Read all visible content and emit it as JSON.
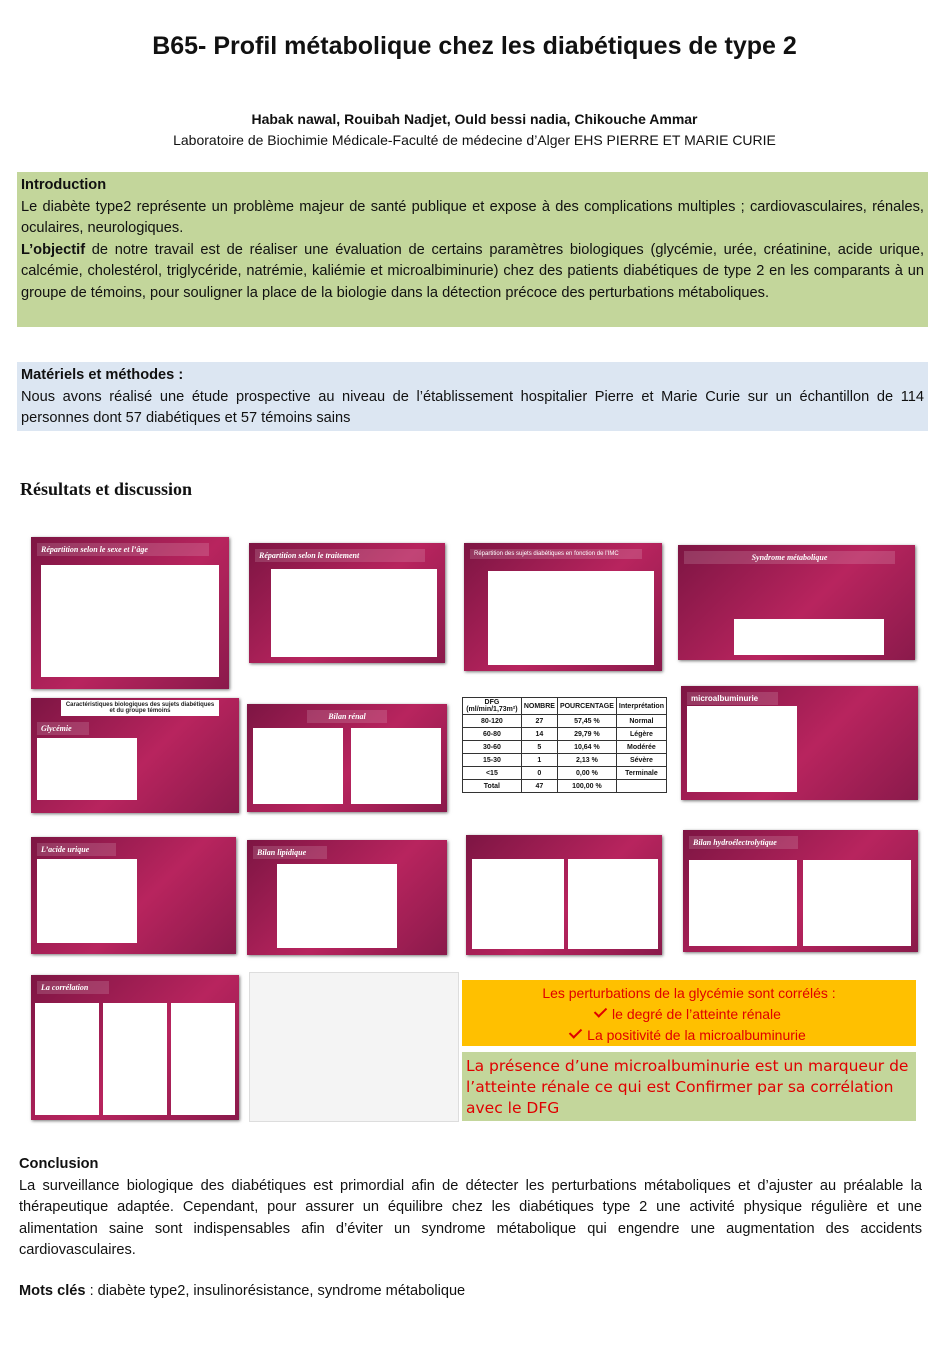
{
  "header": {
    "title": "B65- Profil métabolique chez les diabétiques de type 2",
    "authors": "Habak nawal, Rouibah Nadjet, Ould bessi nadia, Chikouche Ammar",
    "affiliation": "Laboratoire de  Biochimie Médicale-Faculté de médecine d’Alger EHS PIERRE ET MARIE CURIE"
  },
  "introduction": {
    "heading": "Introduction",
    "paragraph1": "Le diabète type2 représente un problème majeur de santé publique et expose à des complications multiples ; cardiovasculaires, rénales, oculaires, neurologiques.",
    "objectif_label": "L’objectif",
    "paragraph2": " de notre travail est de réaliser une évaluation de certains paramètres biologiques (glycémie, urée, créatinine, acide urique, calcémie, cholestérol, triglycéride, natrémie, kaliémie et microalbiminurie) chez des patients diabétiques de type 2 en les comparants à un groupe de témoins, pour souligner la place de la biologie dans la détection précoce des perturbations métaboliques."
  },
  "methods": {
    "heading": "Matériels et méthodes :",
    "text": "Nous avons réalisé une étude prospective au niveau de l’établissement hospitalier Pierre et Marie Curie sur un échantillon de 114 personnes dont 57 diabétiques et 57 témoins sains"
  },
  "results": {
    "heading": "Résultats et discussion",
    "slides": [
      "Répartition selon le sexe et l’âge",
      "Répartition selon le traitement",
      "Répartition des sujets diabétiques en fonction de l’IMC",
      "Syndrome métabolique",
      "Caractéristiques  biologiques des sujets diabétiques et du groupe témoins",
      "Glycémie",
      "Bilan rénal",
      "microalbuminurie",
      "L’acide urique",
      "Bilan lipidique",
      "Bilan hydroélectrolytique",
      "La corrélation"
    ],
    "dfg_table": {
      "header": [
        "DFG (ml/min/1,73m²)",
        "NOMBRE",
        "POURCENTAGE",
        "Interprétation"
      ],
      "rows": [
        [
          "80-120",
          27,
          "57,45 %",
          "Normal"
        ],
        [
          "60-80",
          14,
          "29,79 %",
          "Légère"
        ],
        [
          "30-60",
          5,
          "10,64 %",
          "Modérée"
        ],
        [
          "15-30",
          1,
          "2,13 %",
          "Sévère"
        ],
        [
          "<15",
          0,
          "0,00 %",
          "Terminale"
        ],
        [
          "Total",
          47,
          "100,00 %"
        ]
      ]
    }
  },
  "findings": {
    "box1": {
      "heading": "Les perturbations de la glycémie sont corrélés :",
      "items": [
        "le  degré de l’atteinte rénale",
        "La positivité de la microalbuminurie"
      ]
    },
    "box2": "La présence d’une microalbuminurie est un marqueur de l’atteinte rénale ce qui est Confirmer par sa corrélation avec le DFG"
  },
  "conclusion": {
    "heading": "Conclusion",
    "text": "La surveillance biologique des diabétiques est primordial afin de détecter les perturbations métaboliques et d’ajuster au préalable la thérapeutique adaptée. Cependant, pour assurer un équilibre chez les diabétiques type 2 une activité physique régulière et une alimentation saine sont indispensables afin d’éviter un syndrome métabolique qui engendre une augmentation des accidents cardiovasculaires."
  },
  "keywords": {
    "label": "Mots clés",
    "text": " : diabète type2, insulinorésistance, syndrome métabolique"
  }
}
